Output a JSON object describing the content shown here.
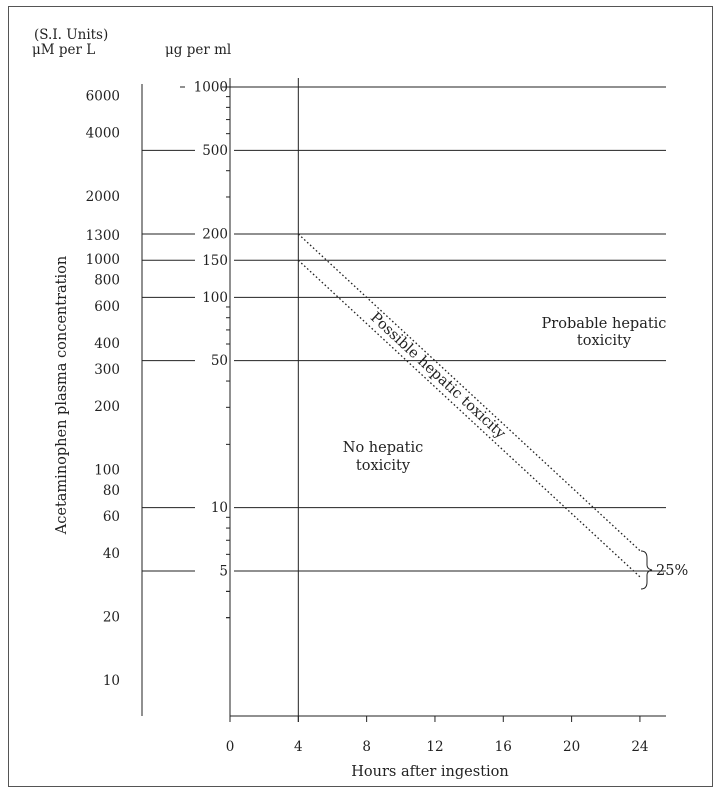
{
  "chart_data": {
    "type": "line",
    "title": "",
    "xlabel": "Hours after ingestion",
    "ylabel": "Acetaminophen plasma concentration",
    "ylabel_units_header": [
      "(S.I. Units)",
      "μM per L"
    ],
    "ylabel_mass_header": "μg per ml",
    "xlim": [
      0,
      24
    ],
    "x_ticks": [
      "0",
      "4",
      "8",
      "12",
      "16",
      "20",
      "24"
    ],
    "y_scale": "log",
    "ylim": [
      2.5,
      1000
    ],
    "ug_ticks": [
      {
        "value": 1000,
        "label": "1000"
      },
      {
        "value": 500,
        "label": "500"
      },
      {
        "value": 200,
        "label": "200"
      },
      {
        "value": 150,
        "label": "150"
      },
      {
        "value": 100,
        "label": "100"
      },
      {
        "value": 50,
        "label": "50"
      },
      {
        "value": 10,
        "label": "10"
      },
      {
        "value": 5,
        "label": "5"
      }
    ],
    "si_ticks": [
      {
        "value": 6000,
        "label": "6000"
      },
      {
        "value": 4000,
        "label": "4000"
      },
      {
        "value": 2000,
        "label": "2000"
      },
      {
        "value": 1300,
        "label": "1300"
      },
      {
        "value": 1000,
        "label": "1000"
      },
      {
        "value": 800,
        "label": "800"
      },
      {
        "value": 600,
        "label": "600"
      },
      {
        "value": 400,
        "label": "400"
      },
      {
        "value": 300,
        "label": "300"
      },
      {
        "value": 200,
        "label": "200"
      },
      {
        "value": 100,
        "label": "100"
      },
      {
        "value": 80,
        "label": "80"
      },
      {
        "value": 60,
        "label": "60"
      },
      {
        "value": 40,
        "label": "40"
      },
      {
        "value": 20,
        "label": "20"
      },
      {
        "value": 10,
        "label": "10"
      }
    ],
    "gridlines_ug": [
      1000,
      500,
      200,
      150,
      100,
      50,
      10,
      5
    ],
    "minor_ticks_ug": [
      900,
      800,
      700,
      600,
      400,
      300,
      90,
      80,
      70,
      60,
      40,
      30,
      20,
      9,
      8,
      7,
      6,
      4,
      3
    ],
    "series": [
      {
        "style": "dotted",
        "points": [
          [
            4,
            200
          ],
          [
            24,
            6.25
          ]
        ]
      },
      {
        "style": "dotted",
        "points": [
          [
            4,
            150
          ],
          [
            24,
            4.69
          ]
        ]
      }
    ],
    "annotations": {
      "upper_region": [
        "Probable hepatic",
        "toxicity"
      ],
      "lower_region": [
        "No hepatic",
        "toxicity"
      ],
      "band": "Possible hepatic toxicity",
      "bracket": "25%"
    }
  }
}
